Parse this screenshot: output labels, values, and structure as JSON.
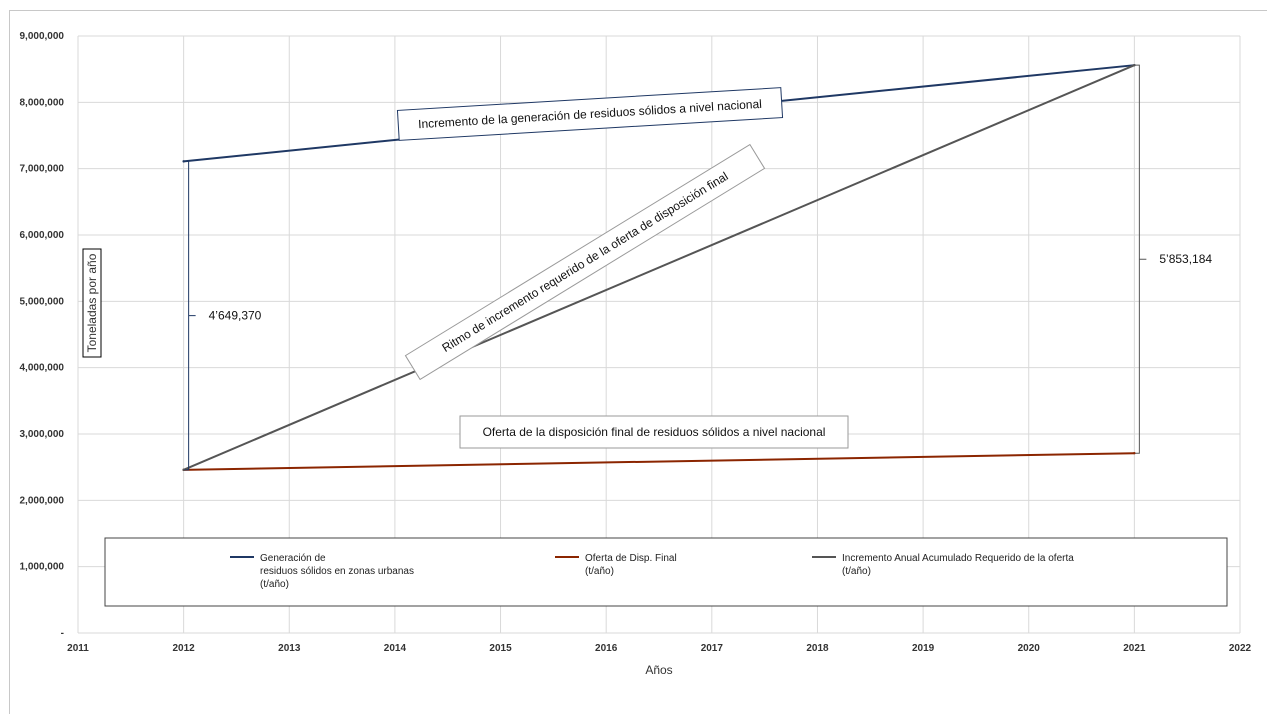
{
  "chart_data": {
    "type": "line",
    "xlabel": "Años",
    "ylabel": "Toneladas por año",
    "xlim": [
      2011,
      2022
    ],
    "ylim": [
      0,
      9000000
    ],
    "x_ticks": [
      "2011",
      "2012",
      "2013",
      "2014",
      "2015",
      "2016",
      "2017",
      "2018",
      "2019",
      "2020",
      "2021",
      "2022"
    ],
    "y_ticks": [
      {
        "value": 0,
        "label": "-"
      },
      {
        "value": 1000000,
        "label": "1,000,000"
      },
      {
        "value": 2000000,
        "label": "2,000,000"
      },
      {
        "value": 3000000,
        "label": "3,000,000"
      },
      {
        "value": 4000000,
        "label": "4,000,000"
      },
      {
        "value": 5000000,
        "label": "5,000,000"
      },
      {
        "value": 6000000,
        "label": "6,000,000"
      },
      {
        "value": 7000000,
        "label": "7,000,000"
      },
      {
        "value": 8000000,
        "label": "8,000,000"
      },
      {
        "value": 9000000,
        "label": "9,000,000"
      }
    ],
    "grid": true,
    "legend_position": "bottom-inside",
    "series": [
      {
        "name": "Generación de residuos sólidos en zonas urbanas (t/año)",
        "legend_lines": [
          "Generación de",
          "residuos sólidos en zonas urbanas",
          "(t/año)"
        ],
        "color": "#1f3864",
        "x": [
          2012,
          2021
        ],
        "values": [
          7110000,
          8560000
        ]
      },
      {
        "name": "Oferta de Disp. Final (t/año)",
        "legend_lines": [
          "Oferta de Disp. Final",
          "(t/año)"
        ],
        "color": "#8b2500",
        "x": [
          2012,
          2021
        ],
        "values": [
          2460000,
          2710000
        ]
      },
      {
        "name": "Incremento Anual Acumulado Requerido de la oferta (t/año)",
        "legend_lines": [
          "Incremento Anual Acumulado Requerido de la oferta",
          "(t/año)"
        ],
        "color": "#555555",
        "x": [
          2012,
          2021
        ],
        "values": [
          2460000,
          8560000
        ]
      }
    ],
    "annotations": {
      "top": "Incremento de la generación de residuos sólidos a nivel nacional",
      "diagonal": "Ritmo de incremento requerido de la oferta de disposición final",
      "bottom": "Oferta de la disposición final de residuos sólidos a nivel nacional"
    },
    "brackets": [
      {
        "label": "4’649,370",
        "x": 2012,
        "from": 2460000,
        "to": 7110000
      },
      {
        "label": "5’853,184",
        "x": 2021,
        "from": 2710000,
        "to": 8560000
      }
    ]
  }
}
